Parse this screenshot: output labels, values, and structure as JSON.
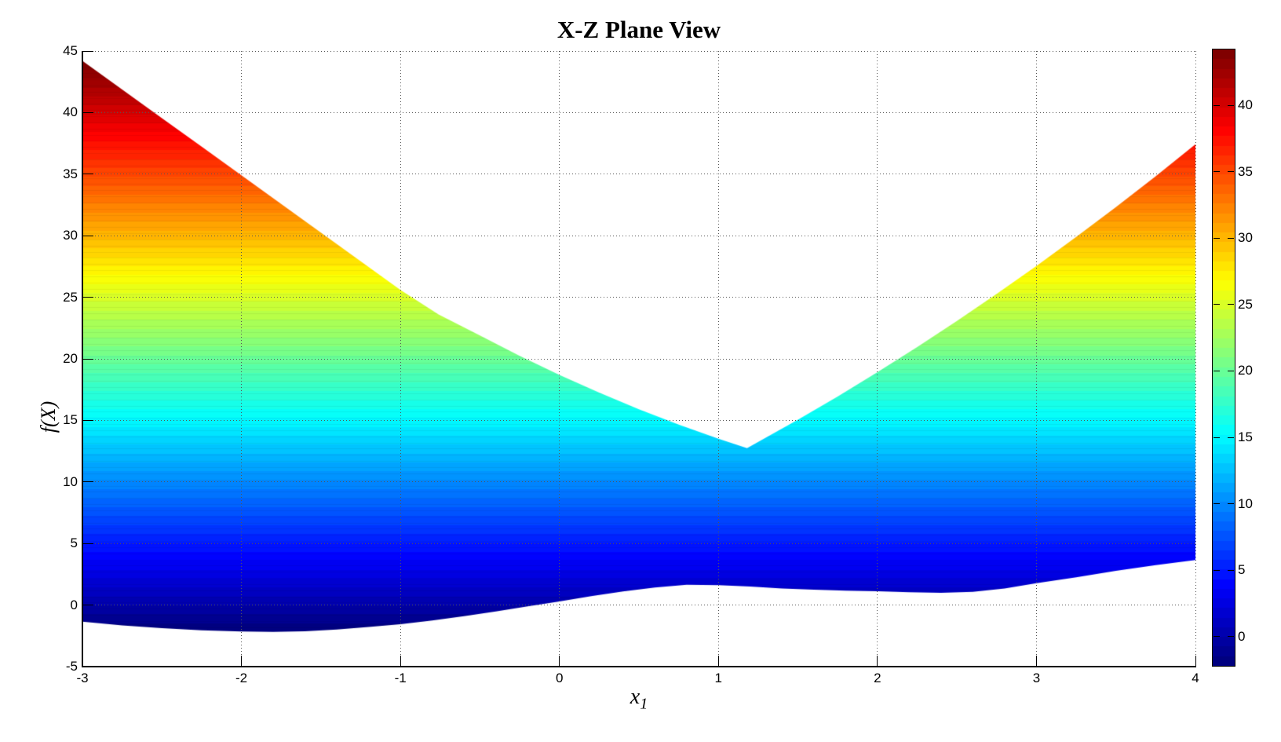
{
  "title": "X-Z Plane View",
  "ylabel": "f(X)",
  "xlabel": {
    "base": "x",
    "sub": "1"
  },
  "axes": {
    "xlim": [
      -3,
      4
    ],
    "ylim": [
      -5,
      45
    ],
    "x_tick_labels": [
      "-3",
      "-2",
      "-1",
      "0",
      "1",
      "2",
      "3",
      "4"
    ],
    "x_tick_values": [
      -3,
      -2,
      -1,
      0,
      1,
      2,
      3,
      4
    ],
    "y_tick_labels": [
      "45",
      "40",
      "35",
      "30",
      "25",
      "20",
      "15",
      "10",
      "5",
      "0",
      "-5"
    ],
    "y_tick_values": [
      45,
      40,
      35,
      30,
      25,
      20,
      15,
      10,
      5,
      0,
      -5
    ],
    "grid_style": "dotted"
  },
  "colorbar": {
    "tick_labels": [
      "0",
      "5",
      "10",
      "15",
      "20",
      "25",
      "30",
      "35",
      "40"
    ],
    "tick_values": [
      0,
      5,
      10,
      15,
      20,
      25,
      30,
      35,
      40
    ],
    "vmin": -2.2,
    "vmax": 44.2,
    "levels": 64,
    "colormap": "jet"
  },
  "chart_data": {
    "type": "area",
    "title": "X-Z Plane View",
    "xlabel": "x_1",
    "ylabel": "f(X)",
    "xlim": [
      -3,
      4
    ],
    "ylim": [
      -5,
      45
    ],
    "grid": true,
    "legend": "none",
    "colormap": "jet",
    "color_range": [
      -2.2,
      44.2
    ],
    "fill_rule": "region between lower and upper envelope, colored by f value (jet colormap), horizontal iso-bands",
    "mesh_band_step": 0.5,
    "upper_envelope": [
      [
        -3,
        44.2
      ],
      [
        -2.75,
        41.88
      ],
      [
        -2.5,
        39.55
      ],
      [
        -2.25,
        37.23
      ],
      [
        -2,
        34.9
      ],
      [
        -1.75,
        32.58
      ],
      [
        -1.5,
        30.25
      ],
      [
        -1.25,
        27.93
      ],
      [
        -1,
        25.6
      ],
      [
        -0.76,
        23.6
      ],
      [
        -0.5,
        21.89
      ],
      [
        -0.25,
        20.24
      ],
      [
        0,
        18.7
      ],
      [
        0.25,
        17.25
      ],
      [
        0.5,
        15.91
      ],
      [
        0.75,
        14.66
      ],
      [
        1,
        13.51
      ],
      [
        1.18,
        12.75
      ],
      [
        1.5,
        15.05
      ],
      [
        1.75,
        16.94
      ],
      [
        2,
        18.91
      ],
      [
        2.25,
        20.95
      ],
      [
        2.5,
        23.07
      ],
      [
        2.75,
        25.27
      ],
      [
        3,
        27.54
      ],
      [
        3.25,
        29.9
      ],
      [
        3.5,
        32.33
      ],
      [
        3.75,
        34.83
      ],
      [
        4,
        37.42
      ]
    ],
    "lower_envelope": [
      [
        -3,
        -1.35
      ],
      [
        -2.75,
        -1.65
      ],
      [
        -2.5,
        -1.88
      ],
      [
        -2.25,
        -2.05
      ],
      [
        -2,
        -2.14
      ],
      [
        -1.8,
        -2.18
      ],
      [
        -1.6,
        -2.13
      ],
      [
        -1.4,
        -1.98
      ],
      [
        -1.2,
        -1.78
      ],
      [
        -1,
        -1.55
      ],
      [
        -0.8,
        -1.25
      ],
      [
        -0.6,
        -0.9
      ],
      [
        -0.4,
        -0.52
      ],
      [
        -0.2,
        -0.1
      ],
      [
        0,
        0.3
      ],
      [
        0.2,
        0.72
      ],
      [
        0.4,
        1.1
      ],
      [
        0.6,
        1.42
      ],
      [
        0.8,
        1.65
      ],
      [
        1,
        1.62
      ],
      [
        1.2,
        1.5
      ],
      [
        1.4,
        1.35
      ],
      [
        1.6,
        1.25
      ],
      [
        1.8,
        1.17
      ],
      [
        2,
        1.12
      ],
      [
        2.2,
        1.05
      ],
      [
        2.4,
        1.0
      ],
      [
        2.6,
        1.08
      ],
      [
        2.8,
        1.35
      ],
      [
        3,
        1.78
      ],
      [
        3.25,
        2.25
      ],
      [
        3.5,
        2.78
      ],
      [
        3.75,
        3.25
      ],
      [
        4,
        3.65
      ]
    ]
  }
}
